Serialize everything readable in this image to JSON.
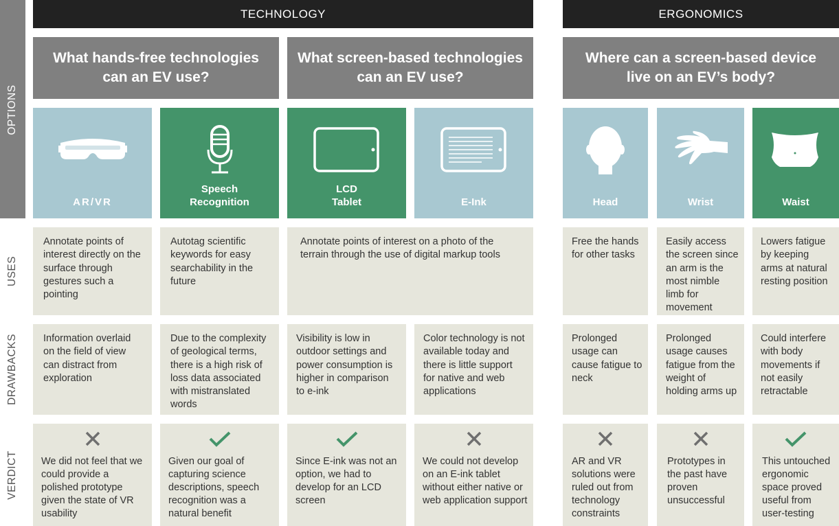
{
  "headers": {
    "technology": "TECHNOLOGY",
    "ergonomics": "ERGONOMICS"
  },
  "questions": {
    "hands_free": [
      "What hands-free technologies",
      "can an EV use?"
    ],
    "screen_based": [
      "What screen-based technologies",
      "can an EV use?"
    ],
    "body": [
      "Where can a screen-based device",
      "live on an EV’s body?"
    ]
  },
  "row_labels": {
    "options": "OPTIONS",
    "uses": "USES",
    "drawbacks": "DRAWBACKS",
    "verdict": "VERDICT"
  },
  "options": [
    {
      "id": "arvr",
      "label": [
        "AR/VR"
      ],
      "icon": "vr-goggles-icon",
      "color": "#a8c8d1"
    },
    {
      "id": "speech",
      "label": [
        "Speech",
        "Recognition"
      ],
      "icon": "microphone-icon",
      "color": "#44946a"
    },
    {
      "id": "lcd",
      "label": [
        "LCD",
        "Tablet"
      ],
      "icon": "tablet-icon",
      "color": "#44946a"
    },
    {
      "id": "eink",
      "label": [
        "E-Ink"
      ],
      "icon": "eink-tablet-icon",
      "color": "#a8c8d1"
    },
    {
      "id": "head",
      "label": [
        "Head"
      ],
      "icon": "head-icon",
      "color": "#a8c8d1"
    },
    {
      "id": "wrist",
      "label": [
        "Wrist"
      ],
      "icon": "hand-icon",
      "color": "#a8c8d1"
    },
    {
      "id": "waist",
      "label": [
        "Waist"
      ],
      "icon": "torso-icon",
      "color": "#44946a"
    }
  ],
  "uses": {
    "arvr": "Annotate points of interest directly on the surface through gestures such a pointing",
    "speech": "Autotag scientific keywords for easy searchability in the future",
    "screens": "Annotate points of interest on a photo of the terrain through the use of digital markup tools",
    "head": "Free the hands for other tasks",
    "wrist": "Easily access the screen since an arm is the most nimble limb for movement",
    "waist": "Lowers fatigue by keeping arms at natural resting position"
  },
  "drawbacks": {
    "arvr": "Information overlaid on the field of view can distract from exploration",
    "speech": "Due to the complexity of geological terms, there is a high risk of loss data associated with mistranslated words",
    "lcd": "Visibility is low in outdoor settings and power consumption is higher in comparison to e-ink",
    "eink": "Color technology is not available today and there is little support for native and web applications",
    "head": "Prolonged usage can cause fatigue to neck",
    "wrist": "Prolonged usage causes fatigue from the weight of holding arms up",
    "waist": "Could interfere with body movements if not easily retractable"
  },
  "verdict": {
    "arvr": {
      "mark": "x-icon",
      "text": "We did not feel that we could provide a polished prototype given the state of VR usability"
    },
    "speech": {
      "mark": "check-icon",
      "text": "Given our goal of capturing science descriptions, speech recognition was a natural benefit"
    },
    "lcd": {
      "mark": "check-icon",
      "text": "Since E-ink was not an option, we had to develop for an LCD screen"
    },
    "eink": {
      "mark": "x-icon",
      "text": "We could not develop on an E-ink tablet without either native or web application support"
    },
    "head": {
      "mark": "x-icon",
      "text": "AR and VR solutions were ruled out from technology constraints"
    },
    "wrist": {
      "mark": "x-icon",
      "text": "Prototypes in the past have proven unsuccessful"
    },
    "waist": {
      "mark": "check-icon",
      "text": "This untouched ergonomic space proved useful from user-testing"
    }
  },
  "colors": {
    "header_bg": "#222222",
    "question_bg": "#808080",
    "option_blue": "#a8c8d1",
    "option_green": "#44946a",
    "cell_bg": "#e6e6dc",
    "check": "#44946a",
    "x_mark": "#6f6f6f"
  }
}
